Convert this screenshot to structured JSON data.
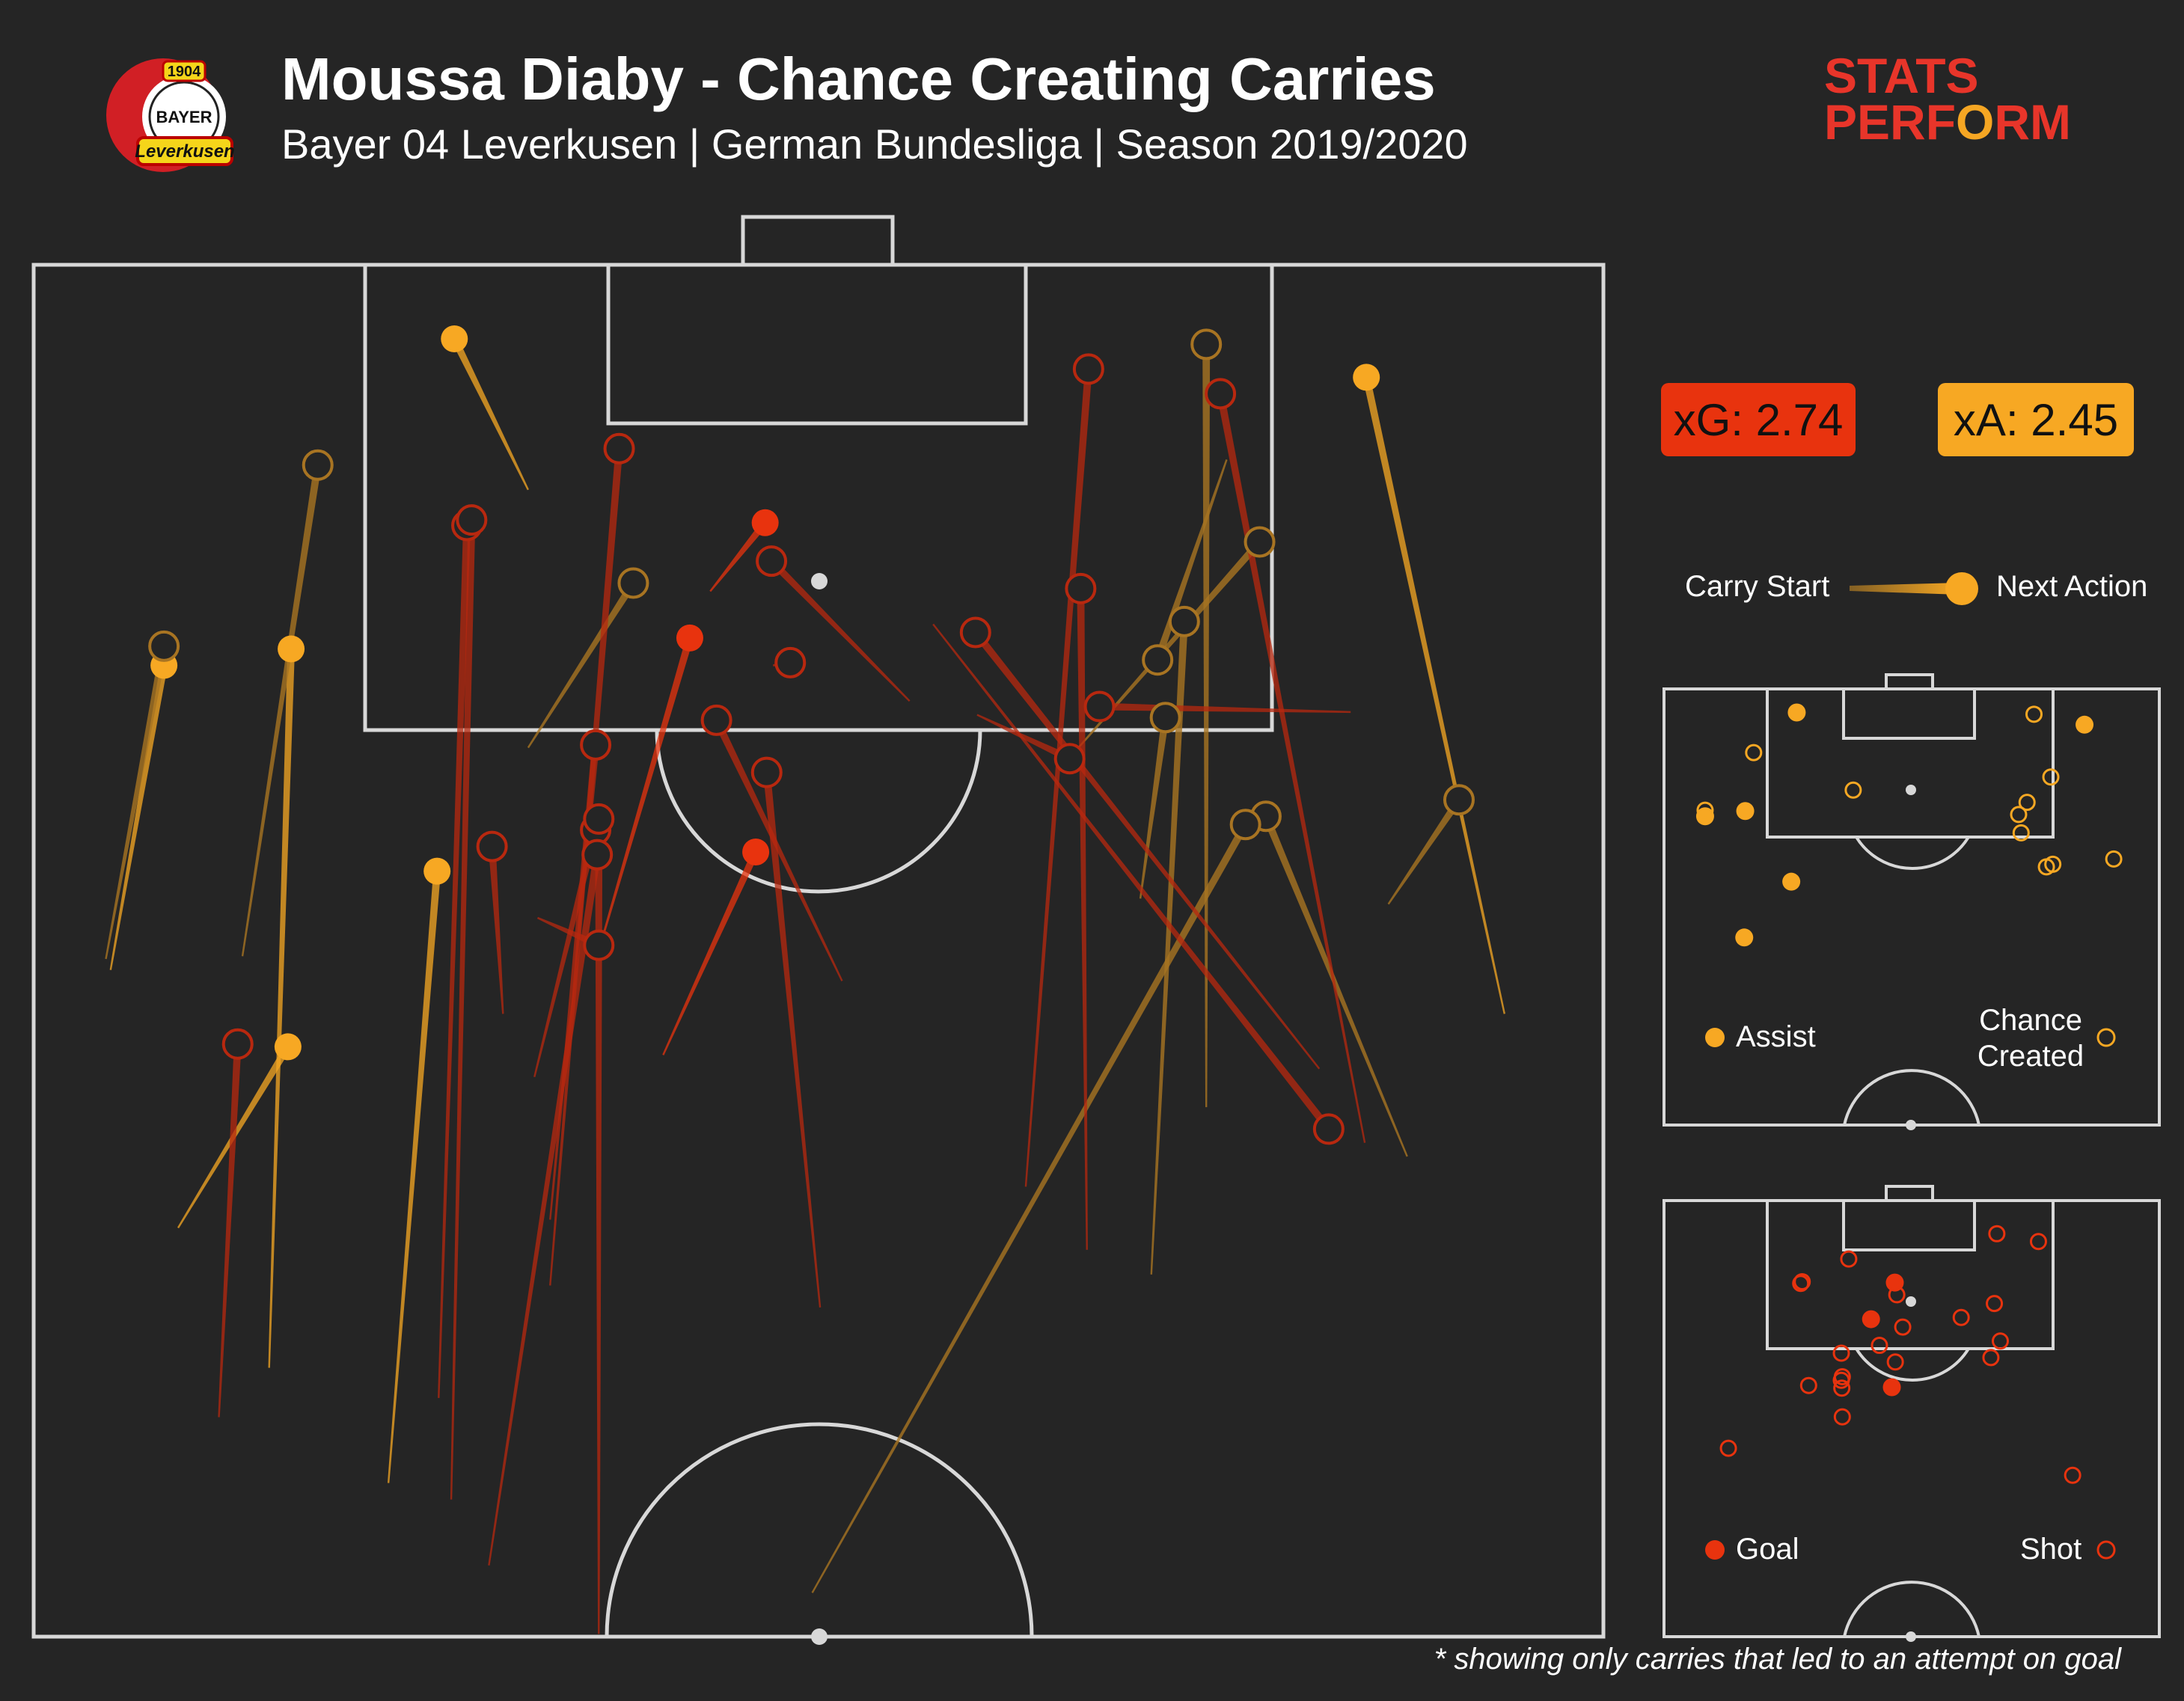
{
  "header": {
    "title": "Moussa Diaby - Chance Creating Carries",
    "subtitle": "Bayer 04 Leverkusen | German Bundesliga | Season 2019/2020",
    "logo_text_top": "1904",
    "logo_text_mid": "BAYER",
    "logo_text_bottom": "Leverkusen",
    "brand_line1": "STATS",
    "brand_line2_a": "PERF",
    "brand_line2_o": "O",
    "brand_line2_b": "RM"
  },
  "stats": {
    "xg_label": "xG: 2.74",
    "xa_label": "xA: 2.45"
  },
  "legend": {
    "carry_start": "Carry Start",
    "next_action": "Next Action",
    "assist": "Assist",
    "chance_line1": "Chance",
    "chance_line2": "Created",
    "goal": "Goal",
    "shot": "Shot"
  },
  "footnote": "* showing only carries that led to an attempt on goal",
  "colors": {
    "background": "#252525",
    "pitch_lines": "#d8d8d8",
    "goal": "#e8330e",
    "shot": "#b8280f",
    "assist": "#f7a823",
    "chance_created": "#a87422"
  },
  "chart_data": {
    "type": "scatter",
    "description_units": "pitch coordinates: x 0-100 across pitch width (left to right), y 0-50 from attacking goal line",
    "carries": [
      {
        "type": "assist",
        "start": [
          4.9,
          25.7
        ],
        "end": [
          8.3,
          14.6
        ]
      },
      {
        "type": "assist",
        "start": [
          22.6,
          44.4
        ],
        "end": [
          25.7,
          22.1
        ]
      },
      {
        "type": "assist",
        "start": [
          15.0,
          40.2
        ],
        "end": [
          16.4,
          14.0
        ]
      },
      {
        "type": "assist",
        "start": [
          9.2,
          35.1
        ],
        "end": [
          16.2,
          28.5
        ]
      },
      {
        "type": "assist",
        "start": [
          93.7,
          27.3
        ],
        "end": [
          84.9,
          4.1
        ]
      },
      {
        "type": "assist",
        "start": [
          31.5,
          8.2
        ],
        "end": [
          26.8,
          2.7
        ]
      },
      {
        "type": "chance",
        "start": [
          4.6,
          25.3
        ],
        "end": [
          8.3,
          13.9
        ]
      },
      {
        "type": "chance",
        "start": [
          13.3,
          25.2
        ],
        "end": [
          18.1,
          7.3
        ]
      },
      {
        "type": "chance",
        "start": [
          31.5,
          17.6
        ],
        "end": [
          38.2,
          11.6
        ]
      },
      {
        "type": "chance",
        "start": [
          74.7,
          30.7
        ],
        "end": [
          74.7,
          2.9
        ]
      },
      {
        "type": "chance",
        "start": [
          71.2,
          36.8
        ],
        "end": [
          73.3,
          13.0
        ]
      },
      {
        "type": "chance",
        "start": [
          66.4,
          17.7
        ],
        "end": [
          78.1,
          10.1
        ]
      },
      {
        "type": "chance",
        "start": [
          70.5,
          23.1
        ],
        "end": [
          72.1,
          16.5
        ]
      },
      {
        "type": "chance",
        "start": [
          87.5,
          32.5
        ],
        "end": [
          78.5,
          20.1
        ]
      },
      {
        "type": "chance",
        "start": [
          86.3,
          23.3
        ],
        "end": [
          90.8,
          19.5
        ]
      },
      {
        "type": "chance",
        "start": [
          76.0,
          7.1
        ],
        "end": [
          71.6,
          14.4
        ]
      },
      {
        "type": "chance",
        "start": [
          49.6,
          48.4
        ],
        "end": [
          77.2,
          20.4
        ]
      },
      {
        "type": "goal",
        "start": [
          43.1,
          11.9
        ],
        "end": [
          46.6,
          9.4
        ]
      },
      {
        "type": "goal",
        "start": [
          36.0,
          25.0
        ],
        "end": [
          41.8,
          13.6
        ]
      },
      {
        "type": "goal",
        "start": [
          40.1,
          28.8
        ],
        "end": [
          46.0,
          21.4
        ]
      },
      {
        "type": "shot",
        "start": [
          11.8,
          42.0
        ],
        "end": [
          13.0,
          28.4
        ]
      },
      {
        "type": "shot",
        "start": [
          25.8,
          41.3
        ],
        "end": [
          27.6,
          9.5
        ]
      },
      {
        "type": "shot",
        "start": [
          26.6,
          45.0
        ],
        "end": [
          27.9,
          9.3
        ]
      },
      {
        "type": "shot",
        "start": [
          32.9,
          37.2
        ],
        "end": [
          37.3,
          6.7
        ]
      },
      {
        "type": "shot",
        "start": [
          31.9,
          29.6
        ],
        "end": [
          35.8,
          20.6
        ]
      },
      {
        "type": "shot",
        "start": [
          32.9,
          34.8
        ],
        "end": [
          35.8,
          17.5
        ]
      },
      {
        "type": "shot",
        "start": [
          36.0,
          49.9
        ],
        "end": [
          36.0,
          20.2
        ]
      },
      {
        "type": "shot",
        "start": [
          29.0,
          47.4
        ],
        "end": [
          35.9,
          21.5
        ]
      },
      {
        "type": "shot",
        "start": [
          29.9,
          27.3
        ],
        "end": [
          29.2,
          21.2
        ]
      },
      {
        "type": "shot",
        "start": [
          32.1,
          23.8
        ],
        "end": [
          36.0,
          24.8
        ]
      },
      {
        "type": "shot",
        "start": [
          47.1,
          14.6
        ],
        "end": [
          48.2,
          14.5
        ]
      },
      {
        "type": "shot",
        "start": [
          50.1,
          38.0
        ],
        "end": [
          46.7,
          18.5
        ]
      },
      {
        "type": "shot",
        "start": [
          51.5,
          26.1
        ],
        "end": [
          43.5,
          16.6
        ]
      },
      {
        "type": "shot",
        "start": [
          55.8,
          15.9
        ],
        "end": [
          47.0,
          10.8
        ]
      },
      {
        "type": "shot",
        "start": [
          60.1,
          16.4
        ],
        "end": [
          66.0,
          18.0
        ]
      },
      {
        "type": "shot",
        "start": [
          57.3,
          13.1
        ],
        "end": [
          82.5,
          31.5
        ]
      },
      {
        "type": "shot",
        "start": [
          63.2,
          33.6
        ],
        "end": [
          67.2,
          3.8
        ]
      },
      {
        "type": "shot",
        "start": [
          67.1,
          35.9
        ],
        "end": [
          66.7,
          11.8
        ]
      },
      {
        "type": "shot",
        "start": [
          81.9,
          29.3
        ],
        "end": [
          60.0,
          13.4
        ]
      },
      {
        "type": "shot",
        "start": [
          84.8,
          32.0
        ],
        "end": [
          75.6,
          4.7
        ]
      },
      {
        "type": "shot",
        "start": [
          83.9,
          16.3
        ],
        "end": [
          67.9,
          16.1
        ]
      }
    ],
    "xg": 2.74,
    "xa": 2.45
  }
}
